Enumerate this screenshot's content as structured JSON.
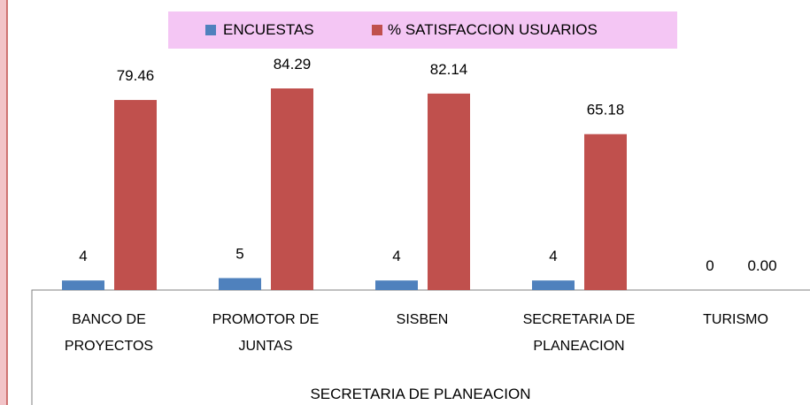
{
  "chart_data": {
    "type": "bar",
    "categories": [
      "BANCO DE PROYECTOS",
      "PROMOTOR DE JUNTAS",
      "SISBEN",
      "SECRETARIA DE PLANEACION",
      "TURISMO"
    ],
    "x_label": "SECRETARIA DE PLANEACION",
    "legend": "top",
    "series": [
      {
        "name": "ENCUESTAS",
        "color": "#4f81bd",
        "values": [
          4,
          5,
          4,
          4,
          0
        ]
      },
      {
        "name": "% SATISFACCION USUARIOS",
        "color": "#c0504d",
        "values": [
          79.46,
          84.29,
          82.14,
          65.18,
          0
        ],
        "value_labels": [
          "79.46",
          "84.29",
          "82.14",
          "65.18",
          "0.00"
        ]
      }
    ]
  }
}
